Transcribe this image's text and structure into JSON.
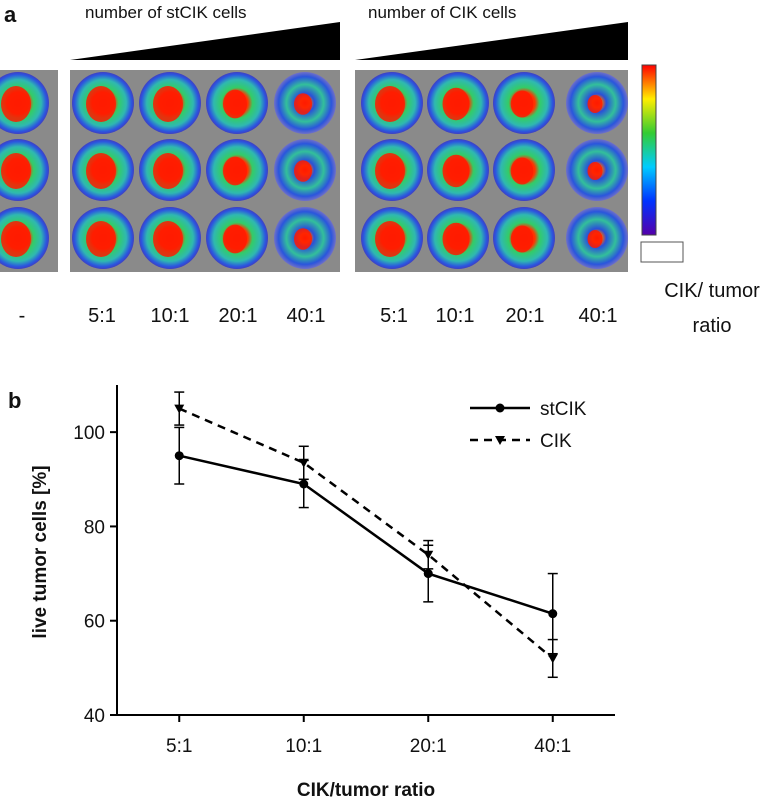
{
  "panel_a": {
    "label": "a",
    "headers": [
      "number of stCIK cells",
      "number of CIK cells"
    ],
    "lane_labels": [
      "-",
      "5:1",
      "10:1",
      "20:1",
      "40:1",
      "5:1",
      "10:1",
      "20:1",
      "40:1"
    ],
    "ratio_label": [
      "CIK/ tumor",
      "ratio"
    ]
  },
  "chart_data": {
    "type": "line",
    "panel_label": "b",
    "x_label": "CIK/tumor ratio",
    "y_label": "live tumor cells [%]",
    "categories": [
      "5:1",
      "10:1",
      "20:1",
      "40:1"
    ],
    "series": [
      {
        "name": "stCIK",
        "color": "#000000",
        "dash": false,
        "marker": "circle",
        "values": [
          95,
          89,
          70,
          61.5
        ],
        "errors": [
          6,
          5,
          6,
          8.5
        ]
      },
      {
        "name": "CIK",
        "color": "#000000",
        "dash": true,
        "marker": "triangle-down",
        "values": [
          105,
          93.5,
          74,
          52
        ],
        "errors": [
          3.5,
          3.5,
          3,
          4
        ]
      }
    ],
    "ylim": [
      40,
      110
    ],
    "yticks": [
      40,
      60,
      80,
      100
    ],
    "legend": "upper right"
  }
}
